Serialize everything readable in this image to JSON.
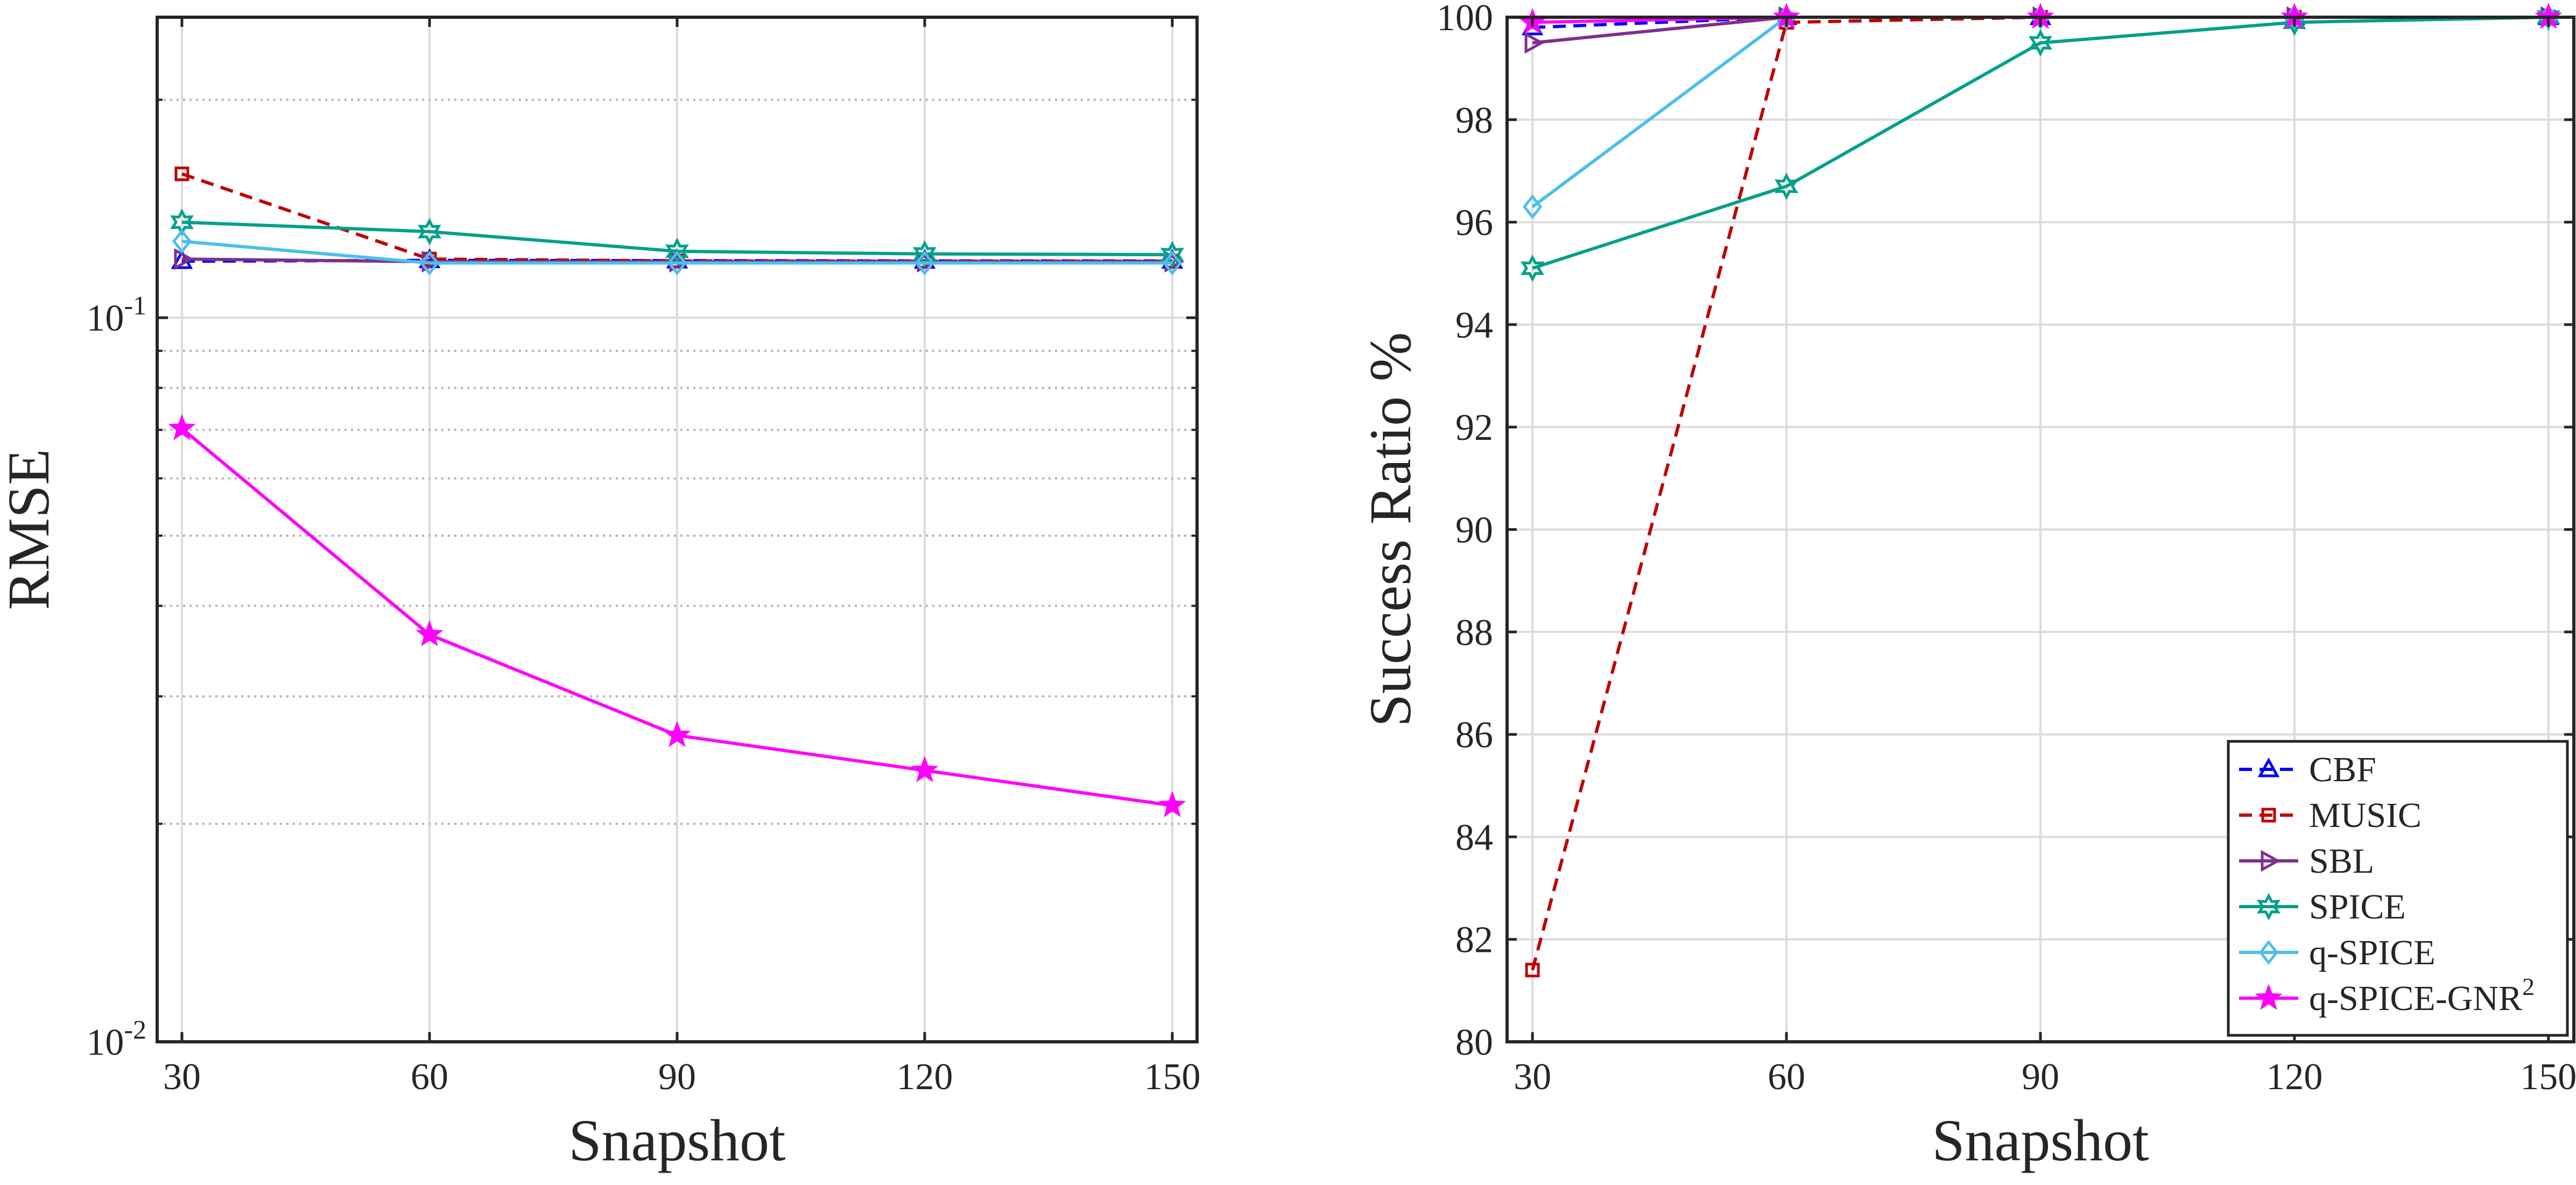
{
  "chart_data": [
    {
      "type": "line",
      "id": "rmse",
      "title": "",
      "xlabel": "Snapshot",
      "ylabel": "RMSE",
      "yscale": "log",
      "x": [
        30,
        60,
        90,
        120,
        150
      ],
      "xlim": [
        27,
        153
      ],
      "ylim": [
        0.01,
        0.26
      ],
      "xticks": [
        "30",
        "60",
        "90",
        "120",
        "150"
      ],
      "yticks": [
        {
          "value": 0.1,
          "base": "10",
          "exp": "-1"
        },
        {
          "value": 0.01,
          "base": "10",
          "exp": "-2"
        }
      ],
      "grid": true,
      "series": [
        {
          "name": "CBF",
          "values": [
            0.1197,
            0.12,
            0.1199,
            0.1198,
            0.1198
          ]
        },
        {
          "name": "MUSIC",
          "values": [
            0.158,
            0.1205,
            0.1198,
            0.1197,
            0.1197
          ]
        },
        {
          "name": "SBL",
          "values": [
            0.1205,
            0.1195,
            0.1195,
            0.1195,
            0.1195
          ]
        },
        {
          "name": "SPICE",
          "values": [
            0.1355,
            0.1315,
            0.1235,
            0.1225,
            0.1222
          ]
        },
        {
          "name": "q-SPICE",
          "values": [
            0.1275,
            0.119,
            0.119,
            0.119,
            0.119
          ]
        },
        {
          "name": "q-SPICE-GNR2",
          "values": [
            0.0703,
            0.0365,
            0.0265,
            0.0237,
            0.0212
          ]
        }
      ]
    },
    {
      "type": "line",
      "id": "success",
      "title": "",
      "xlabel": "Snapshot",
      "ylabel": "Success Ratio %",
      "x": [
        30,
        60,
        90,
        120,
        150
      ],
      "xlim": [
        27,
        153
      ],
      "ylim": [
        80,
        100
      ],
      "xticks": [
        "30",
        "60",
        "90",
        "120",
        "150"
      ],
      "yticks": [
        "80",
        "82",
        "84",
        "86",
        "88",
        "90",
        "92",
        "94",
        "96",
        "98",
        "100"
      ],
      "grid": true,
      "legend": {
        "placement": "bottom-right",
        "entries": [
          {
            "label": "CBF",
            "sup": ""
          },
          {
            "label": "MUSIC",
            "sup": ""
          },
          {
            "label": "SBL",
            "sup": ""
          },
          {
            "label": "SPICE",
            "sup": ""
          },
          {
            "label": "q-SPICE",
            "sup": ""
          },
          {
            "label": "q-SPICE-GNR",
            "sup": "2"
          }
        ]
      },
      "series": [
        {
          "name": "CBF",
          "values": [
            99.8,
            100,
            100,
            100,
            100
          ]
        },
        {
          "name": "MUSIC",
          "values": [
            81.4,
            99.9,
            100,
            100,
            100
          ]
        },
        {
          "name": "SBL",
          "values": [
            99.5,
            100,
            100,
            100,
            100
          ]
        },
        {
          "name": "SPICE",
          "values": [
            95.1,
            96.7,
            99.5,
            99.9,
            100
          ]
        },
        {
          "name": "q-SPICE",
          "values": [
            96.3,
            100,
            100,
            100,
            100
          ]
        },
        {
          "name": "q-SPICE-GNR2",
          "values": [
            99.9,
            100,
            100,
            100,
            100
          ]
        }
      ]
    }
  ],
  "series_styles": {
    "CBF": {
      "color": "#0000ff",
      "dash": true,
      "marker": "triangle-up"
    },
    "MUSIC": {
      "color": "#c00000",
      "dash": true,
      "marker": "square"
    },
    "SBL": {
      "color": "#7e2f8e",
      "dash": false,
      "marker": "triangle-right"
    },
    "SPICE": {
      "color": "#00a08a",
      "dash": false,
      "marker": "hexagram"
    },
    "q-SPICE": {
      "color": "#4dbeee",
      "dash": false,
      "marker": "diamond"
    },
    "q-SPICE-GNR2": {
      "color": "#ff00ff",
      "dash": false,
      "marker": "pentagram"
    }
  }
}
